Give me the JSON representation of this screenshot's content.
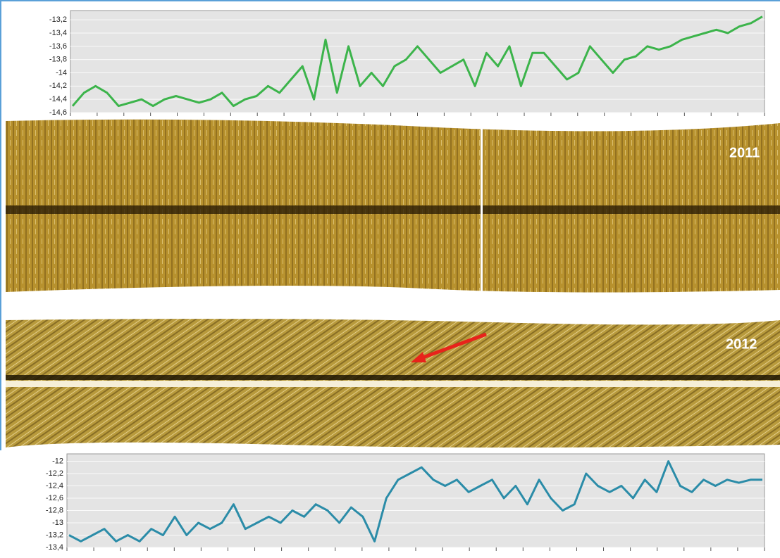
{
  "chart_data": [
    {
      "type": "line",
      "color": "#3cb44b",
      "values": [
        -14.5,
        -14.3,
        -14.2,
        -14.3,
        -14.5,
        -14.45,
        -14.4,
        -14.5,
        -14.4,
        -14.35,
        -14.4,
        -14.45,
        -14.4,
        -14.3,
        -14.5,
        -14.4,
        -14.35,
        -14.2,
        -14.3,
        -14.1,
        -13.9,
        -14.4,
        -13.5,
        -14.3,
        -13.6,
        -14.2,
        -14.0,
        -14.2,
        -13.9,
        -13.8,
        -13.6,
        -13.8,
        -14.0,
        -13.9,
        -13.8,
        -14.2,
        -13.7,
        -13.9,
        -13.6,
        -14.2,
        -13.7,
        -13.7,
        -13.9,
        -14.1,
        -14.0,
        -13.6,
        -13.8,
        -14.0,
        -13.8,
        -13.75,
        -13.6,
        -13.65,
        -13.6,
        -13.5,
        -13.45,
        -13.4,
        -13.35,
        -13.4,
        -13.3,
        -13.25,
        -13.15
      ],
      "ylim": [
        -14.6,
        -13.06
      ],
      "yticks": [
        {
          "value": -13.2,
          "label": "-13,2"
        },
        {
          "value": -13.4,
          "label": "-13,4"
        },
        {
          "value": -13.6,
          "label": "-13,6"
        },
        {
          "value": -13.8,
          "label": "-13,8"
        },
        -14,
        {
          "value": -14.2,
          "label": "-14,2"
        },
        {
          "value": -14.4,
          "label": "-14,4"
        },
        {
          "value": -14.6,
          "label": "-14,6"
        }
      ],
      "grid": true
    },
    {
      "type": "line",
      "color": "#2b8ca8",
      "values": [
        -13.2,
        -13.3,
        -13.2,
        -13.1,
        -13.3,
        -13.2,
        -13.3,
        -13.1,
        -13.2,
        -12.9,
        -13.2,
        -13.0,
        -13.1,
        -13.0,
        -12.7,
        -13.1,
        -13.0,
        -12.9,
        -13.0,
        -12.8,
        -12.9,
        -12.7,
        -12.8,
        -13.0,
        -12.75,
        -12.9,
        -13.3,
        -12.6,
        -12.3,
        -12.2,
        -12.1,
        -12.3,
        -12.4,
        -12.3,
        -12.5,
        -12.4,
        -12.3,
        -12.6,
        -12.4,
        -12.7,
        -12.3,
        -12.6,
        -12.8,
        -12.7,
        -12.2,
        -12.4,
        -12.5,
        -12.4,
        -12.6,
        -12.3,
        -12.5,
        -12.0,
        -12.4,
        -12.5,
        -12.3,
        -12.4,
        -12.3,
        -12.35,
        -12.3,
        -12.3
      ],
      "ylim": [
        -13.4,
        -11.88
      ],
      "yticks": [
        -12,
        {
          "value": -12.2,
          "label": "-12,2"
        },
        {
          "value": -12.4,
          "label": "-12,4"
        },
        {
          "value": -12.6,
          "label": "-12,6"
        },
        {
          "value": -12.8,
          "label": "-12,8"
        },
        -13,
        {
          "value": -13.2,
          "label": "-13,2"
        },
        {
          "value": -13.4,
          "label": "-13,4"
        }
      ],
      "grid": true
    }
  ],
  "images": [
    {
      "label": "2011"
    },
    {
      "label": "2012"
    }
  ]
}
